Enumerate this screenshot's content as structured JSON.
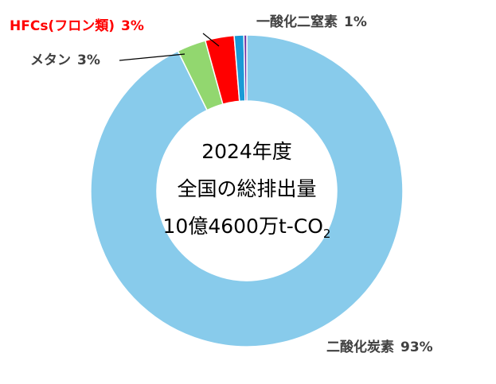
{
  "chart_data": {
    "type": "pie",
    "donut": true,
    "categories": [
      "二酸化炭素",
      "メタン",
      "HFCs(フロン類)",
      "一酸化二窒素",
      null
    ],
    "values": [
      93,
      3,
      3,
      1,
      0.3
    ],
    "value_labels": [
      "93%",
      "3%",
      "3%",
      "1%",
      null
    ],
    "colors": [
      "#88cbeb",
      "#92d76f",
      "#ff0000",
      "#1a9ad6",
      "#7030a0"
    ],
    "label_colors": [
      "#404040",
      "#404040",
      "#ff0000",
      "#404040",
      null
    ],
    "center_text": [
      "2024年度",
      "全国の総排出量",
      "10億4600万t-CO"
    ],
    "center_subscript": "2"
  }
}
